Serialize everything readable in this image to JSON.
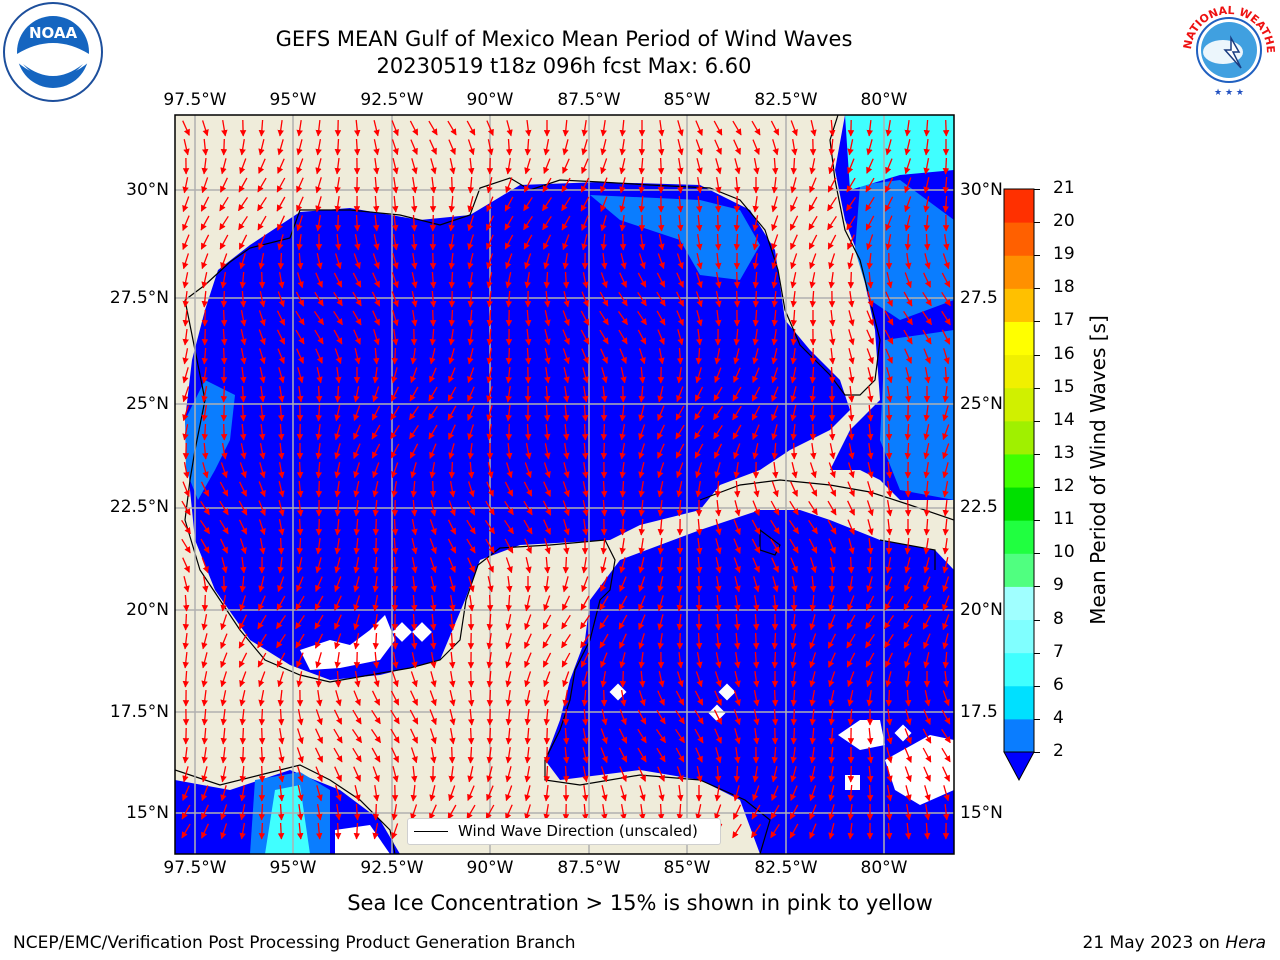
{
  "title": {
    "line1": "GEFS MEAN Gulf of Mexico Mean Period of Wind Waves",
    "line2": "20230519 t18z 096h fcst   Max: 6.60"
  },
  "map": {
    "lon_labels": [
      "97.5°W",
      "95°W",
      "92.5°W",
      "90°W",
      "87.5°W",
      "85°W",
      "82.5°W",
      "80°W"
    ],
    "lat_labels_left": [
      "30°N",
      "27.5°N",
      "25°N",
      "22.5°N",
      "20°N",
      "17.5°N",
      "15°N"
    ],
    "lat_labels_right": [
      "30°N",
      "27.5",
      "25°N",
      "22.5",
      "20°N",
      "17.5",
      "15°N"
    ],
    "extent": {
      "lon_min": -98,
      "lon_max": -78.3,
      "lat_min": 14,
      "lat_max": 31.8
    },
    "gridlines": true,
    "land_color": "#efecda",
    "water_color": "#0000ff",
    "arrow_color": "#ff0000",
    "legend": {
      "label": "Wind Wave Direction (unscaled)"
    }
  },
  "colorbar": {
    "label": "Mean Period of Wind Waves [s]",
    "ticks": [
      "2",
      "4",
      "6",
      "7",
      "8",
      "9",
      "10",
      "11",
      "12",
      "13",
      "14",
      "15",
      "16",
      "17",
      "18",
      "19",
      "20",
      "21"
    ],
    "colors": [
      "#0a7dff",
      "#00e0ff",
      "#40ffff",
      "#80ffff",
      "#a0ffff",
      "#50ff80",
      "#20ff40",
      "#00e000",
      "#40ff00",
      "#a0f000",
      "#d0f000",
      "#f0f000",
      "#ffff00",
      "#ffc000",
      "#ff9000",
      "#ff6000",
      "#ff3000",
      "#ff0000"
    ],
    "extend_color": "#0000ff"
  },
  "footer": {
    "note": "Sea Ice Concentration > 15% is shown in pink to yellow",
    "credit": "NCEP/EMC/Verification Post Processing Product Generation Branch",
    "date_prefix": "21 May 2023 on ",
    "machine": "Hera"
  },
  "logos": {
    "noaa_text": "NOAA",
    "nws_text": "NATIONAL WEATHER SERVICE"
  }
}
